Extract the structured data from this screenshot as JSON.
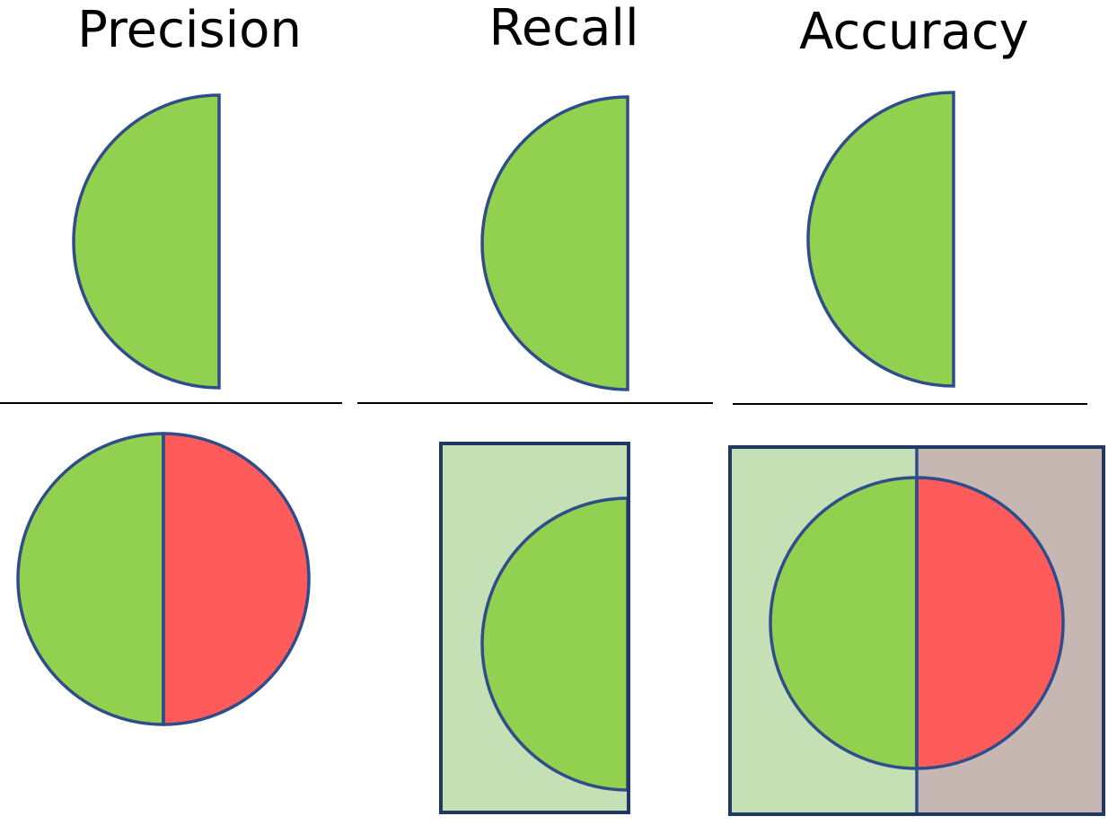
{
  "headings": {
    "precision": "Precision",
    "recall": "Recall",
    "accuracy": "Accuracy"
  },
  "colors": {
    "outline": "#2f4d8a",
    "frame": "#1f3864",
    "rule": "#000000",
    "relevant_fill": "#92d050",
    "irrelevant_fill": "#ff5b5b",
    "relevant_background": "#c5e0b4",
    "irrelevant_background": "#c7b7b3"
  }
}
